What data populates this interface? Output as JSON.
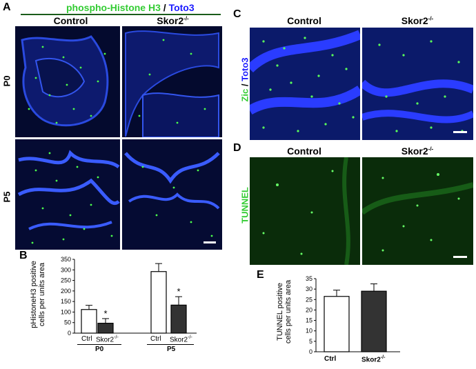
{
  "panelA": {
    "letter": "A",
    "title_green": "phospho-Histone H3",
    "title_sep": " / ",
    "title_blue": "Toto3",
    "col_control": "Control",
    "col_skor2": "Skor2",
    "col_skor2_sup": "-/-",
    "row_p0": "P0",
    "row_p5": "P5"
  },
  "panelB": {
    "letter": "B",
    "ylabel_line1": "pHistoneH3 positive",
    "ylabel_line2": "cells per units area",
    "star1": "*",
    "star2": "*",
    "ctrl": "Ctrl",
    "skor2": "Skor2",
    "skor2_sup": "-/-",
    "group1": "P0",
    "group2": "P5"
  },
  "panelC": {
    "letter": "C",
    "col_control": "Control",
    "col_skor2": "Skor2",
    "col_skor2_sup": "-/-",
    "side_green": "Zic",
    "side_sep": " / ",
    "side_blue": "Toto3"
  },
  "panelD": {
    "letter": "D",
    "col_control": "Control",
    "col_skor2": "Skor2",
    "col_skor2_sup": "-/-",
    "side_label": "TUNNEL"
  },
  "panelE": {
    "letter": "E",
    "ylabel_line1": "TUNNEL positive",
    "ylabel_line2": "cells per units area",
    "ctrl": "Ctrl",
    "skor2": "Skor2",
    "skor2_sup": "-/-"
  },
  "colors": {
    "green": "#33cc33",
    "blue": "#1a1aff",
    "bar_ctrl": "#ffffff",
    "bar_skor2": "#333333"
  },
  "chart_data": [
    {
      "type": "bar",
      "panel": "B",
      "ylabel": "pHistoneH3 positive cells per units area",
      "ylim": [
        0,
        350
      ],
      "yticks": [
        0,
        50,
        100,
        150,
        200,
        250,
        300,
        350
      ],
      "groups": [
        "P0",
        "P5"
      ],
      "categories": [
        "Ctrl",
        "Skor2-/-",
        "Ctrl",
        "Skor2-/-"
      ],
      "values": [
        112,
        47,
        292,
        133
      ],
      "errors": [
        20,
        22,
        38,
        40
      ],
      "significance": [
        "",
        "*",
        "",
        "*"
      ]
    },
    {
      "type": "bar",
      "panel": "E",
      "ylabel": "TUNNEL positive cells per units area",
      "ylim": [
        0,
        35
      ],
      "yticks": [
        0,
        5,
        10,
        15,
        20,
        25,
        30,
        35
      ],
      "categories": [
        "Ctrl",
        "Skor2-/-"
      ],
      "values": [
        26.5,
        29
      ],
      "errors": [
        3,
        3.5
      ]
    }
  ]
}
